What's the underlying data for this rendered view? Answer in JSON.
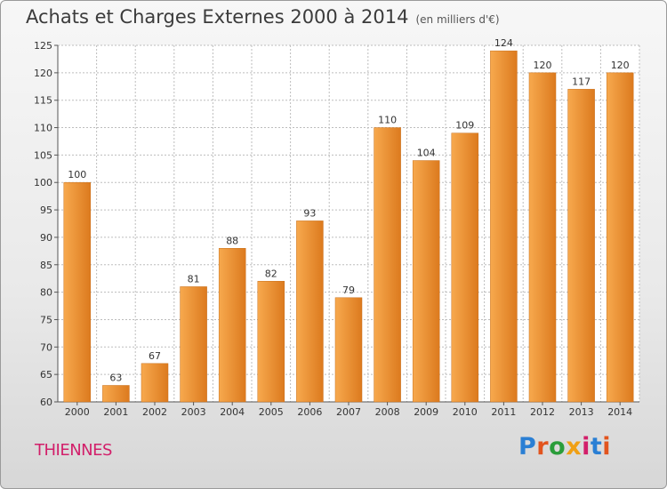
{
  "header": {
    "title": "Achats et Charges Externes 2000 à 2014",
    "subtitle": "(en milliers d'€)"
  },
  "footer": {
    "place": "THIENNES",
    "logo": "Proxiti"
  },
  "colors": {
    "bar_light": "#f7a94e",
    "bar_dark": "#dc7a1e",
    "grid": "#bdbdbd",
    "place_text": "#d21f6a"
  },
  "chart_data": {
    "type": "bar",
    "title": "Achats et Charges Externes 2000 à 2014",
    "subtitle": "(en milliers d'€)",
    "categories": [
      "2000",
      "2001",
      "2002",
      "2003",
      "2004",
      "2005",
      "2006",
      "2007",
      "2008",
      "2009",
      "2010",
      "2011",
      "2012",
      "2013",
      "2014"
    ],
    "values": [
      100,
      63,
      67,
      81,
      88,
      82,
      93,
      79,
      110,
      104,
      109,
      124,
      120,
      117,
      120
    ],
    "ylim": [
      60,
      125
    ],
    "yticks": [
      60,
      65,
      70,
      75,
      80,
      85,
      90,
      95,
      100,
      105,
      110,
      115,
      120,
      125
    ],
    "grid": true,
    "legend": "none"
  }
}
